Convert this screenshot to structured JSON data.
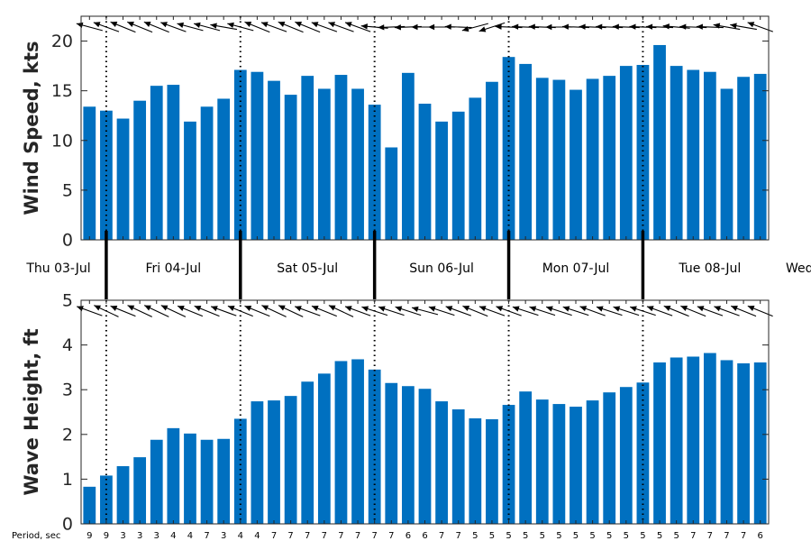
{
  "chart_data": [
    {
      "type": "bar",
      "ylabel": "Wind Speed, kts",
      "ylim": [
        0,
        22.5
      ],
      "yticks": [
        0,
        5,
        10,
        15,
        20
      ],
      "values": [
        13.4,
        13.0,
        12.2,
        14.0,
        15.5,
        15.6,
        11.9,
        13.4,
        14.2,
        17.1,
        16.9,
        16.0,
        14.6,
        16.5,
        15.2,
        16.6,
        15.2,
        13.6,
        9.3,
        16.8,
        13.7,
        11.9,
        12.9,
        14.3,
        15.9,
        18.4,
        17.7,
        16.3,
        16.1,
        15.1,
        16.2,
        16.5,
        17.5,
        17.6,
        19.6,
        17.5,
        17.1,
        16.9,
        15.2,
        16.4,
        16.7
      ],
      "arrow_angles_deg": [
        165,
        160,
        158,
        158,
        158,
        160,
        165,
        165,
        170,
        165,
        158,
        160,
        158,
        158,
        160,
        160,
        160,
        175,
        182,
        182,
        180,
        180,
        178,
        195,
        198,
        178,
        178,
        178,
        180,
        178,
        178,
        178,
        178,
        178,
        178,
        175,
        178,
        178,
        170,
        170,
        160
      ],
      "color": "#0070c0",
      "grid": false
    },
    {
      "type": "bar",
      "ylabel": "Wave Height, ft",
      "ylim": [
        0,
        5
      ],
      "yticks": [
        0,
        1,
        2,
        3,
        4,
        5
      ],
      "values": [
        0.83,
        1.08,
        1.29,
        1.49,
        1.88,
        2.14,
        2.02,
        1.88,
        1.9,
        2.35,
        2.74,
        2.76,
        2.86,
        3.18,
        3.36,
        3.64,
        3.68,
        3.45,
        3.15,
        3.08,
        3.02,
        2.74,
        2.56,
        2.36,
        2.34,
        2.66,
        2.96,
        2.78,
        2.68,
        2.62,
        2.76,
        2.94,
        3.06,
        3.16,
        3.61,
        3.72,
        3.74,
        3.82,
        3.66,
        3.59,
        3.61
      ],
      "arrow_angles_deg": [
        160,
        155,
        158,
        155,
        155,
        155,
        158,
        158,
        160,
        158,
        158,
        155,
        155,
        160,
        158,
        155,
        160,
        162,
        162,
        162,
        165,
        162,
        160,
        158,
        160,
        160,
        162,
        162,
        162,
        162,
        160,
        162,
        162,
        162,
        160,
        158,
        158,
        160,
        160,
        158,
        158
      ],
      "period_label": "Period, sec",
      "periods": [
        "9",
        "9",
        "3",
        "3",
        "3",
        "4",
        "4",
        "7",
        "3",
        "4",
        "4",
        "7",
        "7",
        "7",
        "7",
        "7",
        "7",
        "7",
        "7",
        "6",
        "6",
        "7",
        "7",
        "5",
        "5",
        "5",
        "5",
        "5",
        "5",
        "5",
        "5",
        "5",
        "5",
        "5",
        "5",
        "5",
        "7",
        "7",
        "7",
        "7",
        "6"
      ],
      "color": "#0070c0",
      "grid": false
    }
  ],
  "days": [
    "Thu 03-Jul",
    "Fri 04-Jul",
    "Sat 05-Jul",
    "Sun 06-Jul",
    "Mon 07-Jul",
    "Tue 08-Jul",
    "Wed"
  ],
  "day_boundary_bars": [
    1,
    9,
    17,
    25,
    33
  ]
}
